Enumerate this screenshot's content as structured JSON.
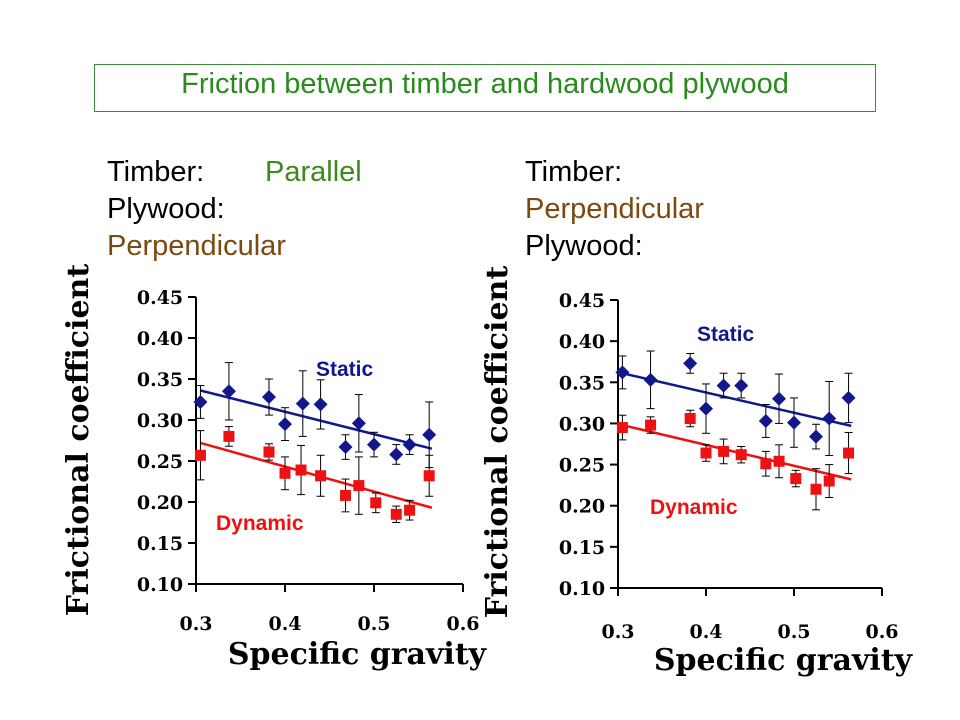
{
  "title": "Friction between timber and hardwood plywood",
  "conditions": [
    {
      "timber_label": "Timber:",
      "timber_value": "Parallel",
      "plywood_label": "Plywood:",
      "plywood_value": "Perpendicular"
    },
    {
      "timber_label": "Timber:",
      "timber_value": "Perpendicular",
      "plywood_label": "Plywood:",
      "plywood_value": ""
    }
  ],
  "colors": {
    "static": "#10188c",
    "dynamic": "#ee1111",
    "title": "#2a8a1e",
    "condition_value": "#7a4a10"
  },
  "chart_data": [
    {
      "type": "scatter",
      "xlabel": "Specific gravity",
      "ylabel": "Frictional coefficient",
      "xlim": [
        0.3,
        0.6
      ],
      "ylim": [
        0.1,
        0.45
      ],
      "x_ticks": [
        "0.3",
        "0.4",
        "0.5",
        "0.6"
      ],
      "y_ticks": [
        "0.10",
        "0.15",
        "0.20",
        "0.25",
        "0.30",
        "0.35",
        "0.40",
        "0.45"
      ],
      "grid": false,
      "series": [
        {
          "name": "Static",
          "marker": "diamond",
          "color": "#10188c",
          "points": [
            {
              "x": 0.305,
              "y": 0.322,
              "err": 0.02
            },
            {
              "x": 0.337,
              "y": 0.335,
              "err": 0.035
            },
            {
              "x": 0.382,
              "y": 0.328,
              "err": 0.022
            },
            {
              "x": 0.4,
              "y": 0.295,
              "err": 0.02
            },
            {
              "x": 0.42,
              "y": 0.32,
              "err": 0.04
            },
            {
              "x": 0.44,
              "y": 0.319,
              "err": 0.03
            },
            {
              "x": 0.468,
              "y": 0.267,
              "err": 0.015
            },
            {
              "x": 0.483,
              "y": 0.296,
              "err": 0.035
            },
            {
              "x": 0.5,
              "y": 0.27,
              "err": 0.015
            },
            {
              "x": 0.525,
              "y": 0.258,
              "err": 0.012
            },
            {
              "x": 0.54,
              "y": 0.27,
              "err": 0.012
            },
            {
              "x": 0.562,
              "y": 0.282,
              "err": 0.04
            }
          ],
          "trend": [
            [
              0.305,
              0.336
            ],
            [
              0.565,
              0.265
            ]
          ]
        },
        {
          "name": "Dynamic",
          "marker": "square",
          "color": "#ee1111",
          "points": [
            {
              "x": 0.305,
              "y": 0.257,
              "err": 0.03
            },
            {
              "x": 0.337,
              "y": 0.28,
              "err": 0.012
            },
            {
              "x": 0.382,
              "y": 0.261,
              "err": 0.01
            },
            {
              "x": 0.4,
              "y": 0.235,
              "err": 0.02
            },
            {
              "x": 0.418,
              "y": 0.239,
              "err": 0.03
            },
            {
              "x": 0.44,
              "y": 0.232,
              "err": 0.025
            },
            {
              "x": 0.468,
              "y": 0.208,
              "err": 0.02
            },
            {
              "x": 0.483,
              "y": 0.22,
              "err": 0.035
            },
            {
              "x": 0.502,
              "y": 0.199,
              "err": 0.012
            },
            {
              "x": 0.525,
              "y": 0.185,
              "err": 0.01
            },
            {
              "x": 0.54,
              "y": 0.19,
              "err": 0.012
            },
            {
              "x": 0.562,
              "y": 0.232,
              "err": 0.025
            }
          ],
          "trend": [
            [
              0.305,
              0.272
            ],
            [
              0.565,
              0.193
            ]
          ]
        }
      ]
    },
    {
      "type": "scatter",
      "xlabel": "Specific gravity",
      "ylabel": "Frictional coefficient",
      "xlim": [
        0.3,
        0.6
      ],
      "ylim": [
        0.1,
        0.45
      ],
      "x_ticks": [
        "0.3",
        "0.4",
        "0.5",
        "0.6"
      ],
      "y_ticks": [
        "0.10",
        "0.15",
        "0.20",
        "0.25",
        "0.30",
        "0.35",
        "0.40",
        "0.45"
      ],
      "grid": false,
      "series": [
        {
          "name": "Static",
          "marker": "diamond",
          "color": "#10188c",
          "points": [
            {
              "x": 0.305,
              "y": 0.362,
              "err": 0.02
            },
            {
              "x": 0.337,
              "y": 0.353,
              "err": 0.035
            },
            {
              "x": 0.382,
              "y": 0.373,
              "err": 0.012
            },
            {
              "x": 0.4,
              "y": 0.318,
              "err": 0.03
            },
            {
              "x": 0.42,
              "y": 0.346,
              "err": 0.015
            },
            {
              "x": 0.44,
              "y": 0.346,
              "err": 0.015
            },
            {
              "x": 0.468,
              "y": 0.303,
              "err": 0.02
            },
            {
              "x": 0.483,
              "y": 0.33,
              "err": 0.03
            },
            {
              "x": 0.5,
              "y": 0.301,
              "err": 0.03
            },
            {
              "x": 0.525,
              "y": 0.284,
              "err": 0.015
            },
            {
              "x": 0.54,
              "y": 0.306,
              "err": 0.045
            },
            {
              "x": 0.562,
              "y": 0.331,
              "err": 0.03
            }
          ],
          "trend": [
            [
              0.305,
              0.361
            ],
            [
              0.565,
              0.297
            ]
          ]
        },
        {
          "name": "Dynamic",
          "marker": "square",
          "color": "#ee1111",
          "points": [
            {
              "x": 0.305,
              "y": 0.295,
              "err": 0.015
            },
            {
              "x": 0.337,
              "y": 0.298,
              "err": 0.01
            },
            {
              "x": 0.382,
              "y": 0.306,
              "err": 0.01
            },
            {
              "x": 0.4,
              "y": 0.264,
              "err": 0.01
            },
            {
              "x": 0.42,
              "y": 0.266,
              "err": 0.015
            },
            {
              "x": 0.44,
              "y": 0.262,
              "err": 0.01
            },
            {
              "x": 0.468,
              "y": 0.251,
              "err": 0.015
            },
            {
              "x": 0.483,
              "y": 0.254,
              "err": 0.02
            },
            {
              "x": 0.502,
              "y": 0.233,
              "err": 0.01
            },
            {
              "x": 0.525,
              "y": 0.22,
              "err": 0.025
            },
            {
              "x": 0.54,
              "y": 0.23,
              "err": 0.02
            },
            {
              "x": 0.562,
              "y": 0.264,
              "err": 0.025
            }
          ],
          "trend": [
            [
              0.305,
              0.298
            ],
            [
              0.565,
              0.232
            ]
          ]
        }
      ]
    }
  ]
}
